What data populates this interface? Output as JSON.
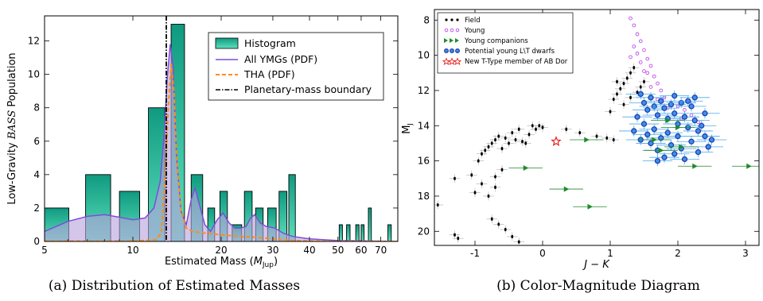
{
  "chart_data": [
    {
      "type": "bar",
      "caption": "(a) Distribution of Estimated Masses",
      "xlabel": "Estimated Mass (M_Jup)",
      "xlabel_main": "Estimated Mass (",
      "xlabel_sym": "M",
      "xlabel_sub": "Jup",
      "xlabel_close": ")",
      "ylabel": "Low-Gravity BASS Population",
      "ylabel_pre": "Low-Gravity ",
      "ylabel_em": "BASS",
      "ylabel_post": " Population",
      "x_scale": "log",
      "xlim": [
        5,
        80
      ],
      "ylim": [
        0,
        13.5
      ],
      "x_ticks": [
        5,
        10,
        20,
        30,
        40,
        50,
        60,
        70
      ],
      "x_tick_labels": [
        "5",
        "10",
        "20",
        "30",
        "40",
        "50",
        "60",
        "70"
      ],
      "y_ticks": [
        0,
        2,
        4,
        6,
        8,
        10,
        12
      ],
      "legend": [
        "Histogram",
        "All YMGs (PDF)",
        "THA (PDF)",
        "Planetary-mass boundary"
      ],
      "boundary_mass": 13,
      "colors": {
        "hist_top": "#12a386",
        "hist_bottom": "#4dd7b5",
        "ymg": "#7c4dd8",
        "ymg_fill": "#b8a0dc",
        "tha": "#ff8c1a"
      },
      "bins": [
        {
          "lo": 5.0,
          "hi": 6.05,
          "count": 2
        },
        {
          "lo": 6.9,
          "hi": 8.4,
          "count": 4
        },
        {
          "lo": 9.0,
          "hi": 10.55,
          "count": 3
        },
        {
          "lo": 11.3,
          "hi": 12.85,
          "count": 8
        },
        {
          "lo": 13.5,
          "hi": 15.0,
          "count": 13
        },
        {
          "lo": 15.8,
          "hi": 17.3,
          "count": 4
        },
        {
          "lo": 18.0,
          "hi": 19.0,
          "count": 2
        },
        {
          "lo": 19.8,
          "hi": 21.0,
          "count": 3
        },
        {
          "lo": 21.8,
          "hi": 23.5,
          "count": 1
        },
        {
          "lo": 24.0,
          "hi": 25.5,
          "count": 3
        },
        {
          "lo": 26.2,
          "hi": 27.8,
          "count": 2
        },
        {
          "lo": 28.8,
          "hi": 30.8,
          "count": 2
        },
        {
          "lo": 31.5,
          "hi": 33.5,
          "count": 3
        },
        {
          "lo": 34.0,
          "hi": 35.8,
          "count": 4
        },
        {
          "lo": 50.5,
          "hi": 51.8,
          "count": 1
        },
        {
          "lo": 53.5,
          "hi": 55.0,
          "count": 1
        },
        {
          "lo": 57.5,
          "hi": 59.0,
          "count": 1
        },
        {
          "lo": 60.0,
          "hi": 61.4,
          "count": 1
        },
        {
          "lo": 63.5,
          "hi": 65.0,
          "count": 2
        },
        {
          "lo": 74.0,
          "hi": 76.0,
          "count": 1
        }
      ],
      "ymg_pdf": [
        [
          5,
          0.6
        ],
        [
          6,
          1.2
        ],
        [
          7,
          1.5
        ],
        [
          8,
          1.6
        ],
        [
          9,
          1.45
        ],
        [
          10,
          1.3
        ],
        [
          11,
          1.4
        ],
        [
          11.8,
          2.0
        ],
        [
          12.4,
          3.6
        ],
        [
          12.8,
          6.5
        ],
        [
          13.1,
          9.8
        ],
        [
          13.4,
          11.8
        ],
        [
          13.7,
          10.5
        ],
        [
          14.1,
          5.0
        ],
        [
          14.6,
          1.8
        ],
        [
          15.2,
          1.0
        ],
        [
          15.8,
          2.5
        ],
        [
          16.3,
          3.2
        ],
        [
          16.8,
          2.3
        ],
        [
          17.6,
          1.0
        ],
        [
          18.4,
          0.6
        ],
        [
          19.4,
          1.3
        ],
        [
          20.3,
          1.7
        ],
        [
          21.3,
          1.1
        ],
        [
          22.3,
          0.8
        ],
        [
          23.3,
          0.8
        ],
        [
          24.3,
          0.9
        ],
        [
          25.2,
          1.4
        ],
        [
          26.0,
          1.6
        ],
        [
          27.2,
          1.1
        ],
        [
          28.5,
          0.9
        ],
        [
          30.5,
          0.8
        ],
        [
          32.5,
          0.5
        ],
        [
          35,
          0.3
        ],
        [
          40,
          0.15
        ],
        [
          50,
          0.05
        ],
        [
          80,
          0.0
        ]
      ],
      "tha_pdf": [
        [
          5,
          0.02
        ],
        [
          10,
          0.02
        ],
        [
          12.0,
          0.1
        ],
        [
          12.5,
          0.5
        ],
        [
          12.9,
          4.0
        ],
        [
          13.2,
          8.0
        ],
        [
          13.5,
          10.6
        ],
        [
          13.8,
          9.0
        ],
        [
          14.1,
          5.0
        ],
        [
          14.6,
          1.8
        ],
        [
          15.2,
          0.8
        ],
        [
          16.0,
          0.6
        ],
        [
          17.5,
          0.5
        ],
        [
          20,
          0.4
        ],
        [
          23,
          0.3
        ],
        [
          26,
          0.25
        ],
        [
          30,
          0.15
        ],
        [
          35,
          0.05
        ],
        [
          45,
          0.01
        ],
        [
          80,
          0.0
        ]
      ]
    },
    {
      "type": "scatter",
      "caption": "(b) Color-Magnitude Diagram",
      "xlabel": "J − K",
      "ylabel": "M_J",
      "ylabel_sym": "M",
      "ylabel_sub": "J",
      "xlim": [
        -1.6,
        3.2
      ],
      "ylim": [
        20.8,
        7.4
      ],
      "y_inverted": true,
      "x_ticks": [
        -1,
        0,
        1,
        2,
        3
      ],
      "x_tick_labels": [
        "-1",
        "0",
        "1",
        "2",
        "3"
      ],
      "y_ticks": [
        8,
        10,
        12,
        14,
        16,
        18,
        20
      ],
      "legend": [
        "Field",
        "Young",
        "Young companions",
        "Potential young L\\T dwarfs",
        "New T-Type member of AB Dor"
      ],
      "colors": {
        "field": "#000000",
        "young": "#c04ce8",
        "companions": "#1f8a2a",
        "potential": "#1e4fd6",
        "potential_fill": "#3f8fe8",
        "new_member": "#e8221f",
        "errorbar": "#b5b5b5"
      },
      "series": [
        {
          "name": "Field",
          "points": [
            [
              -1.55,
              18.5
            ],
            [
              -1.3,
              20.2
            ],
            [
              -1.25,
              20.4
            ],
            [
              -1.3,
              17.0
            ],
            [
              -1.05,
              16.8
            ],
            [
              -0.95,
              16.0
            ],
            [
              -0.9,
              15.6
            ],
            [
              -0.85,
              15.4
            ],
            [
              -0.8,
              15.2
            ],
            [
              -0.75,
              15.0
            ],
            [
              -0.7,
              14.8
            ],
            [
              -0.65,
              14.6
            ],
            [
              -0.6,
              15.3
            ],
            [
              -0.55,
              14.7
            ],
            [
              -0.5,
              15.0
            ],
            [
              -0.45,
              14.4
            ],
            [
              -0.4,
              14.8
            ],
            [
              -0.35,
              14.2
            ],
            [
              -0.3,
              14.9
            ],
            [
              -0.25,
              15.0
            ],
            [
              -0.2,
              14.5
            ],
            [
              -0.15,
              14.0
            ],
            [
              -0.1,
              14.2
            ],
            [
              -0.05,
              14.0
            ],
            [
              0.0,
              14.1
            ],
            [
              -0.6,
              16.5
            ],
            [
              -0.7,
              17.5
            ],
            [
              -0.8,
              18.0
            ],
            [
              -0.75,
              19.3
            ],
            [
              -0.65,
              19.6
            ],
            [
              -0.55,
              19.9
            ],
            [
              -0.45,
              20.3
            ],
            [
              -0.35,
              20.6
            ],
            [
              -1.0,
              17.8
            ],
            [
              -0.9,
              17.3
            ],
            [
              -0.7,
              16.9
            ],
            [
              0.35,
              14.2
            ],
            [
              0.55,
              14.4
            ],
            [
              0.8,
              14.6
            ],
            [
              0.95,
              14.7
            ],
            [
              1.05,
              14.8
            ],
            [
              1.0,
              13.2
            ],
            [
              1.05,
              12.5
            ],
            [
              1.1,
              12.2
            ],
            [
              1.15,
              11.9
            ],
            [
              1.2,
              11.6
            ],
            [
              1.25,
              11.3
            ],
            [
              1.3,
              11.0
            ],
            [
              1.35,
              10.7
            ],
            [
              1.1,
              11.5
            ],
            [
              1.2,
              12.8
            ],
            [
              1.3,
              12.4
            ],
            [
              1.4,
              12.1
            ],
            [
              1.45,
              11.8
            ],
            [
              1.5,
              11.5
            ]
          ]
        },
        {
          "name": "Young",
          "points": [
            [
              1.3,
              7.9
            ],
            [
              1.35,
              8.3
            ],
            [
              1.4,
              8.8
            ],
            [
              1.45,
              9.2
            ],
            [
              1.5,
              9.7
            ],
            [
              1.4,
              9.9
            ],
            [
              1.55,
              10.2
            ],
            [
              1.6,
              10.6
            ],
            [
              1.5,
              10.9
            ],
            [
              1.65,
              11.2
            ],
            [
              1.7,
              11.6
            ],
            [
              1.6,
              11.8
            ],
            [
              1.75,
              12.0
            ],
            [
              1.8,
              12.4
            ],
            [
              1.9,
              12.7
            ],
            [
              2.0,
              12.9
            ],
            [
              2.1,
              13.1
            ],
            [
              2.2,
              13.4
            ],
            [
              1.35,
              9.5
            ],
            [
              1.45,
              10.4
            ],
            [
              1.3,
              10.1
            ],
            [
              1.55,
              11.0
            ],
            [
              1.7,
              12.5
            ],
            [
              1.85,
              13.0
            ],
            [
              2.05,
              13.6
            ],
            [
              2.3,
              13.8
            ]
          ]
        },
        {
          "name": "Young companions",
          "points": [
            [
              0.65,
              14.8
            ],
            [
              -0.25,
              16.4
            ],
            [
              0.35,
              17.6
            ],
            [
              0.7,
              18.6
            ],
            [
              2.25,
              16.3
            ],
            [
              3.05,
              16.3
            ],
            [
              1.75,
              15.4
            ],
            [
              2.05,
              15.2
            ],
            [
              1.65,
              14.8
            ],
            [
              2.0,
              14.1
            ],
            [
              1.85,
              13.7
            ]
          ]
        },
        {
          "name": "Potential young L\\T dwarfs",
          "points": [
            [
              1.45,
              12.2
            ],
            [
              1.5,
              12.7
            ],
            [
              1.55,
              13.1
            ],
            [
              1.6,
              12.4
            ],
            [
              1.65,
              12.9
            ],
            [
              1.7,
              13.4
            ],
            [
              1.75,
              12.6
            ],
            [
              1.8,
              13.0
            ],
            [
              1.85,
              13.6
            ],
            [
              1.9,
              12.8
            ],
            [
              1.95,
              13.3
            ],
            [
              2.0,
              13.9
            ],
            [
              2.05,
              12.7
            ],
            [
              2.1,
              13.5
            ],
            [
              2.15,
              14.1
            ],
            [
              2.2,
              12.9
            ],
            [
              2.25,
              13.7
            ],
            [
              2.3,
              14.3
            ],
            [
              1.5,
              13.9
            ],
            [
              1.55,
              14.5
            ],
            [
              1.6,
              15.0
            ],
            [
              1.65,
              14.2
            ],
            [
              1.7,
              15.4
            ],
            [
              1.75,
              14.7
            ],
            [
              1.8,
              15.8
            ],
            [
              1.85,
              14.4
            ],
            [
              1.9,
              15.1
            ],
            [
              1.95,
              15.6
            ],
            [
              2.0,
              14.6
            ],
            [
              2.05,
              15.3
            ],
            [
              2.1,
              15.9
            ],
            [
              2.2,
              14.9
            ],
            [
              2.3,
              15.5
            ],
            [
              2.4,
              14.6
            ],
            [
              2.45,
              15.2
            ],
            [
              2.5,
              14.8
            ],
            [
              2.35,
              14.0
            ],
            [
              2.4,
              13.3
            ],
            [
              1.4,
              13.5
            ],
            [
              1.45,
              14.8
            ],
            [
              1.35,
              14.3
            ],
            [
              1.95,
              12.3
            ],
            [
              2.15,
              12.6
            ],
            [
              2.25,
              12.4
            ],
            [
              1.7,
              16.0
            ]
          ]
        },
        {
          "name": "New T-Type member of AB Dor",
          "points": [
            [
              0.2,
              14.9
            ]
          ]
        }
      ]
    }
  ]
}
